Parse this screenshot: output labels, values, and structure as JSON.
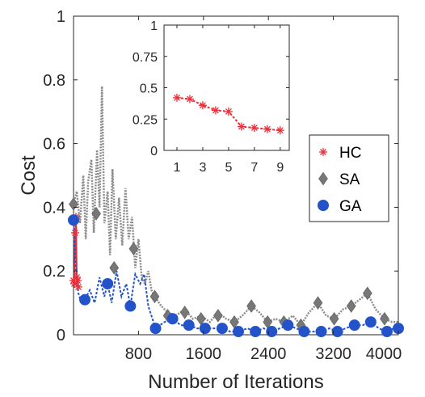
{
  "chart_data": [
    {
      "type": "line",
      "title": "",
      "xlabel": "Number of Iterations",
      "ylabel": "Cost",
      "xlim": [
        0,
        4000
      ],
      "ylim": [
        0,
        1
      ],
      "xticks": [
        "800",
        "1600",
        "2400",
        "3200",
        "4000"
      ],
      "yticks": [
        "0",
        "0.2",
        "0.4",
        "0.6",
        "0.8",
        "1"
      ],
      "grid": false,
      "legend_position": "right",
      "series": [
        {
          "name": "HC",
          "color": "#e8303a",
          "marker": "asterisk",
          "points": [
            [
              0,
              0.17
            ],
            [
              10,
              0.16
            ],
            [
              20,
              0.32
            ],
            [
              30,
              0.37
            ],
            [
              40,
              0.18
            ],
            [
              50,
              0.17
            ],
            [
              60,
              0.15
            ]
          ]
        },
        {
          "name": "SA",
          "color": "#808080",
          "marker": "diamond",
          "points": [
            [
              0,
              0.41
            ],
            [
              280,
              0.38
            ],
            [
              500,
              0.21
            ],
            [
              740,
              0.27
            ],
            [
              1000,
              0.12
            ],
            [
              1160,
              0.06
            ],
            [
              1370,
              0.07
            ],
            [
              1570,
              0.05
            ],
            [
              1780,
              0.06
            ],
            [
              1980,
              0.04
            ],
            [
              2190,
              0.09
            ],
            [
              2390,
              0.04
            ],
            [
              2590,
              0.04
            ],
            [
              2800,
              0.03
            ],
            [
              3010,
              0.1
            ],
            [
              3210,
              0.05
            ],
            [
              3420,
              0.09
            ],
            [
              3620,
              0.13
            ],
            [
              3830,
              0.05
            ]
          ],
          "line": [
            [
              0,
              0.41
            ],
            [
              40,
              0.45
            ],
            [
              80,
              0.35
            ],
            [
              120,
              0.5
            ],
            [
              150,
              0.3
            ],
            [
              180,
              0.48
            ],
            [
              220,
              0.55
            ],
            [
              250,
              0.32
            ],
            [
              290,
              0.58
            ],
            [
              320,
              0.4
            ],
            [
              350,
              0.78
            ],
            [
              380,
              0.35
            ],
            [
              420,
              0.45
            ],
            [
              450,
              0.25
            ],
            [
              480,
              0.52
            ],
            [
              520,
              0.3
            ],
            [
              560,
              0.43
            ],
            [
              600,
              0.28
            ],
            [
              640,
              0.46
            ],
            [
              680,
              0.3
            ],
            [
              720,
              0.37
            ],
            [
              760,
              0.21
            ],
            [
              800,
              0.3
            ],
            [
              840,
              0.18
            ],
            [
              880,
              0.16
            ],
            [
              920,
              0.2
            ],
            [
              960,
              0.14
            ],
            [
              1000,
              0.12
            ],
            [
              1080,
              0.09
            ],
            [
              1160,
              0.07
            ],
            [
              1260,
              0.06
            ],
            [
              1370,
              0.08
            ],
            [
              1470,
              0.05
            ],
            [
              1570,
              0.06
            ],
            [
              1680,
              0.04
            ],
            [
              1780,
              0.07
            ],
            [
              1880,
              0.05
            ],
            [
              1980,
              0.04
            ],
            [
              2080,
              0.06
            ],
            [
              2190,
              0.09
            ],
            [
              2290,
              0.07
            ],
            [
              2390,
              0.04
            ],
            [
              2490,
              0.05
            ],
            [
              2590,
              0.04
            ],
            [
              2700,
              0.06
            ],
            [
              2800,
              0.03
            ],
            [
              2900,
              0.07
            ],
            [
              3010,
              0.1
            ],
            [
              3110,
              0.06
            ],
            [
              3210,
              0.05
            ],
            [
              3320,
              0.08
            ],
            [
              3420,
              0.09
            ],
            [
              3520,
              0.11
            ],
            [
              3620,
              0.13
            ],
            [
              3720,
              0.08
            ],
            [
              3830,
              0.05
            ],
            [
              3920,
              0.04
            ],
            [
              4000,
              0.04
            ]
          ]
        },
        {
          "name": "GA",
          "color": "#2453c9",
          "marker": "circle",
          "points": [
            [
              0,
              0.36
            ],
            [
              140,
              0.11
            ],
            [
              420,
              0.16
            ],
            [
              700,
              0.09
            ],
            [
              1010,
              0.02
            ],
            [
              1220,
              0.05
            ],
            [
              1420,
              0.03
            ],
            [
              1620,
              0.02
            ],
            [
              1830,
              0.02
            ],
            [
              2030,
              0.01
            ],
            [
              2240,
              0.01
            ],
            [
              2440,
              0.01
            ],
            [
              2640,
              0.03
            ],
            [
              2840,
              0.01
            ],
            [
              3050,
              0.01
            ],
            [
              3250,
              0.01
            ],
            [
              3460,
              0.03
            ],
            [
              3660,
              0.04
            ],
            [
              3860,
              0.01
            ],
            [
              4000,
              0.02
            ]
          ],
          "line": [
            [
              0,
              0.36
            ],
            [
              30,
              0.2
            ],
            [
              60,
              0.13
            ],
            [
              100,
              0.1
            ],
            [
              140,
              0.11
            ],
            [
              200,
              0.14
            ],
            [
              260,
              0.1
            ],
            [
              320,
              0.18
            ],
            [
              380,
              0.12
            ],
            [
              420,
              0.16
            ],
            [
              470,
              0.1
            ],
            [
              530,
              0.2
            ],
            [
              590,
              0.12
            ],
            [
              650,
              0.16
            ],
            [
              700,
              0.09
            ],
            [
              760,
              0.19
            ],
            [
              820,
              0.16
            ],
            [
              870,
              0.19
            ],
            [
              920,
              0.09
            ],
            [
              1010,
              0.02
            ],
            [
              1120,
              0.04
            ],
            [
              1220,
              0.05
            ],
            [
              1320,
              0.03
            ],
            [
              1420,
              0.03
            ],
            [
              1520,
              0.02
            ],
            [
              1620,
              0.02
            ],
            [
              1720,
              0.02
            ],
            [
              1830,
              0.02
            ],
            [
              1930,
              0.01
            ],
            [
              2030,
              0.01
            ],
            [
              2140,
              0.02
            ],
            [
              2240,
              0.01
            ],
            [
              2340,
              0.02
            ],
            [
              2440,
              0.01
            ],
            [
              2540,
              0.02
            ],
            [
              2640,
              0.03
            ],
            [
              2740,
              0.02
            ],
            [
              2840,
              0.01
            ],
            [
              2950,
              0.01
            ],
            [
              3050,
              0.01
            ],
            [
              3150,
              0.02
            ],
            [
              3250,
              0.01
            ],
            [
              3350,
              0.02
            ],
            [
              3460,
              0.03
            ],
            [
              3560,
              0.03
            ],
            [
              3660,
              0.04
            ],
            [
              3760,
              0.02
            ],
            [
              3860,
              0.01
            ],
            [
              3940,
              0.02
            ],
            [
              4000,
              0.02
            ]
          ]
        }
      ]
    },
    {
      "type": "line",
      "title": "",
      "xlabel": "",
      "ylabel": "",
      "xlim": [
        0,
        9.7
      ],
      "ylim": [
        0,
        1
      ],
      "xticks": [
        "1",
        "3",
        "5",
        "7",
        "9"
      ],
      "yticks": [
        "0",
        "0.25",
        "0.5",
        "0.75",
        "1"
      ],
      "grid": false,
      "series": [
        {
          "color": "#e8303a",
          "marker": "asterisk",
          "points": [
            [
              1,
              0.42
            ],
            [
              2,
              0.41
            ],
            [
              3,
              0.36
            ],
            [
              4,
              0.32
            ],
            [
              5,
              0.31
            ],
            [
              6,
              0.19
            ],
            [
              7,
              0.18
            ],
            [
              8,
              0.17
            ],
            [
              9,
              0.16
            ]
          ]
        }
      ]
    }
  ]
}
